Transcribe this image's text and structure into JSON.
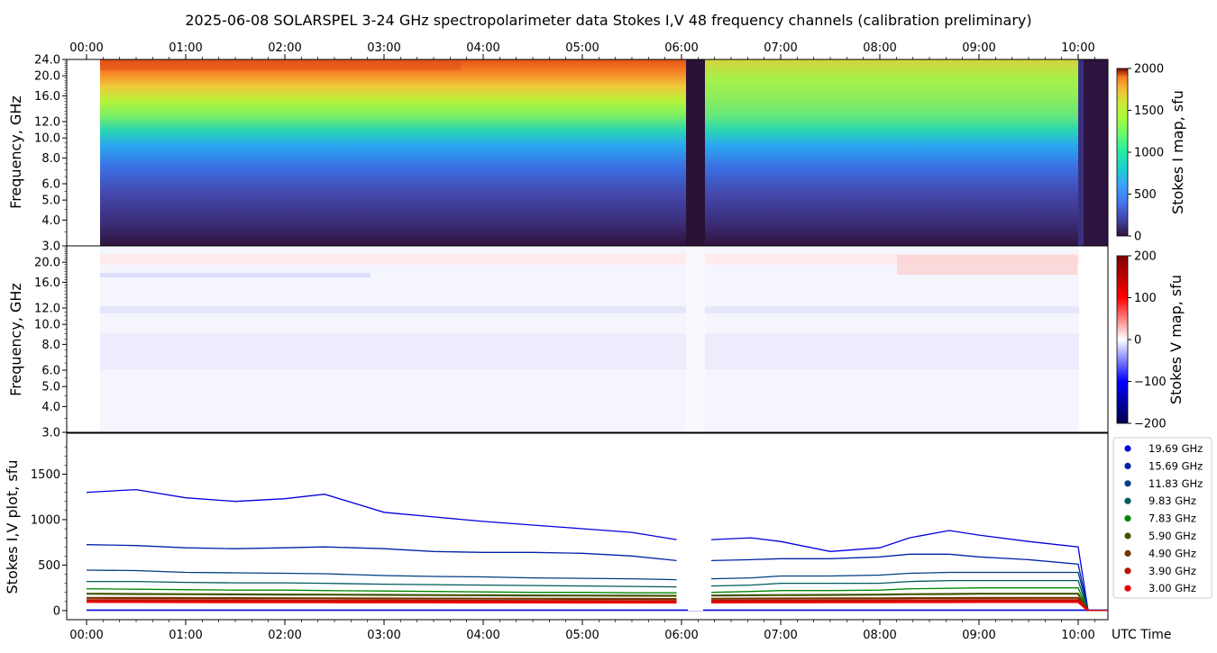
{
  "title": "2025-06-08  SOLARSPEL  3-24 GHz spectropolarimeter data   Stokes I,V   48 frequency channels   (calibration preliminary)",
  "time_ticks": [
    "00:00",
    "01:00",
    "02:00",
    "03:00",
    "04:00",
    "05:00",
    "06:00",
    "07:00",
    "08:00",
    "09:00",
    "10:00"
  ],
  "time_axis_label": "UTC Time",
  "colors": {
    "trace_blue": "#0000dd",
    "legend_frame": "#cccccc"
  },
  "chart_data": [
    {
      "type": "heatmap",
      "panel": "stokes-i-map",
      "ylabel": "Frequency, GHz",
      "yscale": "log",
      "ylim": [
        3.0,
        24.0
      ],
      "y_ticks": [
        "3.0",
        "4.0",
        "5.0",
        "6.0",
        "8.0",
        "10.0",
        "12.0",
        "16.0",
        "20.0",
        "24.0"
      ],
      "x_range_hours": [
        -0.2,
        10.3
      ],
      "data_start_hours": 0.0,
      "data_end_hours": 10.1,
      "gap_hours": [
        6.0,
        6.2
      ],
      "colorbar_label": "Stokes I map, sfu",
      "colorbar_ticks": [
        "0",
        "500",
        "1000",
        "1500",
        "2000"
      ],
      "clim": [
        0,
        2000
      ],
      "colormap": "turbo"
    },
    {
      "type": "heatmap",
      "panel": "stokes-v-map",
      "ylabel": "Frequency, GHz",
      "yscale": "log",
      "ylim": [
        3.0,
        24.0
      ],
      "y_ticks": [
        "3.0",
        "4.0",
        "5.0",
        "6.0",
        "8.0",
        "10.0",
        "12.0",
        "16.0",
        "20.0"
      ],
      "x_range_hours": [
        -0.2,
        10.3
      ],
      "data_start_hours": 0.0,
      "data_end_hours": 10.1,
      "colorbar_label": "Stokes V map, sfu",
      "colorbar_ticks": [
        "200",
        "100",
        "0",
        "−100",
        "−200"
      ],
      "clim": [
        -200,
        200
      ],
      "colormap": "seismic"
    },
    {
      "type": "line",
      "panel": "stokes-iv-plot",
      "ylabel": "Stokes I,V plot, sfu",
      "ylim": [
        -100,
        1950
      ],
      "y_ticks": [
        "0",
        "500",
        "1000",
        "1500"
      ],
      "x_range_hours": [
        -0.2,
        10.3
      ],
      "gap_hours": [
        6.0,
        6.2
      ],
      "x": [
        0.0,
        0.5,
        1.0,
        1.5,
        2.0,
        2.4,
        3.0,
        3.5,
        4.0,
        4.5,
        5.0,
        5.5,
        5.95,
        6.3,
        6.7,
        7.0,
        7.5,
        8.0,
        8.3,
        8.7,
        9.0,
        9.5,
        10.0,
        10.1
      ],
      "series": [
        {
          "name": "19.69 GHz",
          "color": "#0000dd",
          "values": [
            1300,
            1330,
            1240,
            1200,
            1230,
            1280,
            1080,
            1030,
            980,
            940,
            900,
            860,
            780,
            780,
            800,
            760,
            650,
            690,
            800,
            880,
            830,
            760,
            700,
            0
          ]
        },
        {
          "name": "15.69 GHz",
          "color": "#0022aa",
          "values": [
            725,
            715,
            690,
            680,
            690,
            700,
            680,
            650,
            640,
            640,
            630,
            600,
            550,
            550,
            560,
            570,
            570,
            590,
            620,
            620,
            590,
            560,
            510,
            0
          ]
        },
        {
          "name": "11.83 GHz",
          "color": "#003f80",
          "values": [
            445,
            440,
            420,
            415,
            410,
            405,
            385,
            375,
            370,
            360,
            355,
            350,
            340,
            350,
            360,
            380,
            380,
            390,
            410,
            420,
            420,
            420,
            420,
            0
          ]
        },
        {
          "name": "9.83 GHz",
          "color": "#005a5a",
          "values": [
            320,
            320,
            310,
            305,
            305,
            300,
            290,
            285,
            280,
            275,
            270,
            265,
            260,
            270,
            280,
            300,
            300,
            300,
            320,
            330,
            330,
            330,
            330,
            0
          ]
        },
        {
          "name": "7.83 GHz",
          "color": "#008800",
          "values": [
            240,
            235,
            230,
            225,
            225,
            220,
            215,
            210,
            205,
            200,
            200,
            195,
            195,
            200,
            210,
            220,
            220,
            225,
            240,
            245,
            250,
            250,
            250,
            0
          ]
        },
        {
          "name": "5.90 GHz",
          "color": "#445500",
          "values": [
            185,
            182,
            180,
            178,
            176,
            175,
            172,
            170,
            168,
            166,
            165,
            163,
            162,
            165,
            168,
            170,
            172,
            175,
            180,
            182,
            185,
            185,
            185,
            0
          ]
        },
        {
          "name": "4.90 GHz",
          "color": "#773300",
          "values": [
            140,
            139,
            138,
            137,
            136,
            135,
            133,
            132,
            131,
            130,
            129,
            128,
            127,
            130,
            132,
            133,
            134,
            135,
            137,
            138,
            139,
            140,
            140,
            0
          ]
        },
        {
          "name": "3.90 GHz",
          "color": "#bb1100",
          "values": [
            115,
            114,
            113,
            112,
            111,
            110,
            109,
            108,
            107,
            106,
            106,
            105,
            105,
            107,
            108,
            109,
            110,
            111,
            112,
            113,
            114,
            114,
            114,
            0
          ]
        },
        {
          "name": "3.00 GHz",
          "color": "#ee0000",
          "values": [
            95,
            94,
            93,
            92,
            92,
            91,
            90,
            90,
            89,
            89,
            88,
            88,
            88,
            89,
            90,
            90,
            91,
            92,
            93,
            93,
            94,
            94,
            94,
            0
          ]
        }
      ],
      "legend_position": "right"
    }
  ]
}
